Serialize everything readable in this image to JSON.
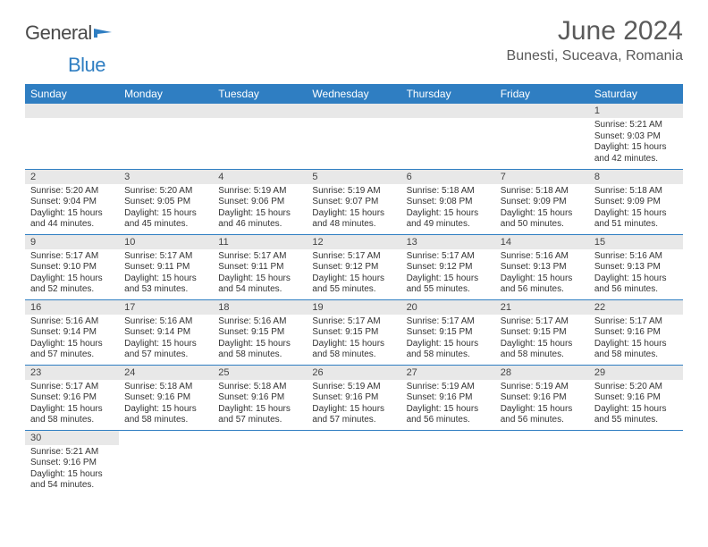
{
  "logo": {
    "text1": "General",
    "text2": "Blue"
  },
  "title": "June 2024",
  "location": "Bunesti, Suceava, Romania",
  "colors": {
    "header_bg": "#2f7ec2",
    "header_fg": "#ffffff",
    "daynum_bg": "#e8e8e8",
    "row_border": "#2f7ec2",
    "title_color": "#5a5a5a"
  },
  "day_labels": [
    "Sunday",
    "Monday",
    "Tuesday",
    "Wednesday",
    "Thursday",
    "Friday",
    "Saturday"
  ],
  "weeks": [
    [
      null,
      null,
      null,
      null,
      null,
      null,
      {
        "n": "1",
        "sr": "5:21 AM",
        "ss": "9:03 PM",
        "dl": "15 hours and 42 minutes."
      }
    ],
    [
      {
        "n": "2",
        "sr": "5:20 AM",
        "ss": "9:04 PM",
        "dl": "15 hours and 44 minutes."
      },
      {
        "n": "3",
        "sr": "5:20 AM",
        "ss": "9:05 PM",
        "dl": "15 hours and 45 minutes."
      },
      {
        "n": "4",
        "sr": "5:19 AM",
        "ss": "9:06 PM",
        "dl": "15 hours and 46 minutes."
      },
      {
        "n": "5",
        "sr": "5:19 AM",
        "ss": "9:07 PM",
        "dl": "15 hours and 48 minutes."
      },
      {
        "n": "6",
        "sr": "5:18 AM",
        "ss": "9:08 PM",
        "dl": "15 hours and 49 minutes."
      },
      {
        "n": "7",
        "sr": "5:18 AM",
        "ss": "9:09 PM",
        "dl": "15 hours and 50 minutes."
      },
      {
        "n": "8",
        "sr": "5:18 AM",
        "ss": "9:09 PM",
        "dl": "15 hours and 51 minutes."
      }
    ],
    [
      {
        "n": "9",
        "sr": "5:17 AM",
        "ss": "9:10 PM",
        "dl": "15 hours and 52 minutes."
      },
      {
        "n": "10",
        "sr": "5:17 AM",
        "ss": "9:11 PM",
        "dl": "15 hours and 53 minutes."
      },
      {
        "n": "11",
        "sr": "5:17 AM",
        "ss": "9:11 PM",
        "dl": "15 hours and 54 minutes."
      },
      {
        "n": "12",
        "sr": "5:17 AM",
        "ss": "9:12 PM",
        "dl": "15 hours and 55 minutes."
      },
      {
        "n": "13",
        "sr": "5:17 AM",
        "ss": "9:12 PM",
        "dl": "15 hours and 55 minutes."
      },
      {
        "n": "14",
        "sr": "5:16 AM",
        "ss": "9:13 PM",
        "dl": "15 hours and 56 minutes."
      },
      {
        "n": "15",
        "sr": "5:16 AM",
        "ss": "9:13 PM",
        "dl": "15 hours and 56 minutes."
      }
    ],
    [
      {
        "n": "16",
        "sr": "5:16 AM",
        "ss": "9:14 PM",
        "dl": "15 hours and 57 minutes."
      },
      {
        "n": "17",
        "sr": "5:16 AM",
        "ss": "9:14 PM",
        "dl": "15 hours and 57 minutes."
      },
      {
        "n": "18",
        "sr": "5:16 AM",
        "ss": "9:15 PM",
        "dl": "15 hours and 58 minutes."
      },
      {
        "n": "19",
        "sr": "5:17 AM",
        "ss": "9:15 PM",
        "dl": "15 hours and 58 minutes."
      },
      {
        "n": "20",
        "sr": "5:17 AM",
        "ss": "9:15 PM",
        "dl": "15 hours and 58 minutes."
      },
      {
        "n": "21",
        "sr": "5:17 AM",
        "ss": "9:15 PM",
        "dl": "15 hours and 58 minutes."
      },
      {
        "n": "22",
        "sr": "5:17 AM",
        "ss": "9:16 PM",
        "dl": "15 hours and 58 minutes."
      }
    ],
    [
      {
        "n": "23",
        "sr": "5:17 AM",
        "ss": "9:16 PM",
        "dl": "15 hours and 58 minutes."
      },
      {
        "n": "24",
        "sr": "5:18 AM",
        "ss": "9:16 PM",
        "dl": "15 hours and 58 minutes."
      },
      {
        "n": "25",
        "sr": "5:18 AM",
        "ss": "9:16 PM",
        "dl": "15 hours and 57 minutes."
      },
      {
        "n": "26",
        "sr": "5:19 AM",
        "ss": "9:16 PM",
        "dl": "15 hours and 57 minutes."
      },
      {
        "n": "27",
        "sr": "5:19 AM",
        "ss": "9:16 PM",
        "dl": "15 hours and 56 minutes."
      },
      {
        "n": "28",
        "sr": "5:19 AM",
        "ss": "9:16 PM",
        "dl": "15 hours and 56 minutes."
      },
      {
        "n": "29",
        "sr": "5:20 AM",
        "ss": "9:16 PM",
        "dl": "15 hours and 55 minutes."
      }
    ],
    [
      {
        "n": "30",
        "sr": "5:21 AM",
        "ss": "9:16 PM",
        "dl": "15 hours and 54 minutes."
      },
      null,
      null,
      null,
      null,
      null,
      null
    ]
  ],
  "labels": {
    "sunrise": "Sunrise:",
    "sunset": "Sunset:",
    "daylight": "Daylight:"
  }
}
